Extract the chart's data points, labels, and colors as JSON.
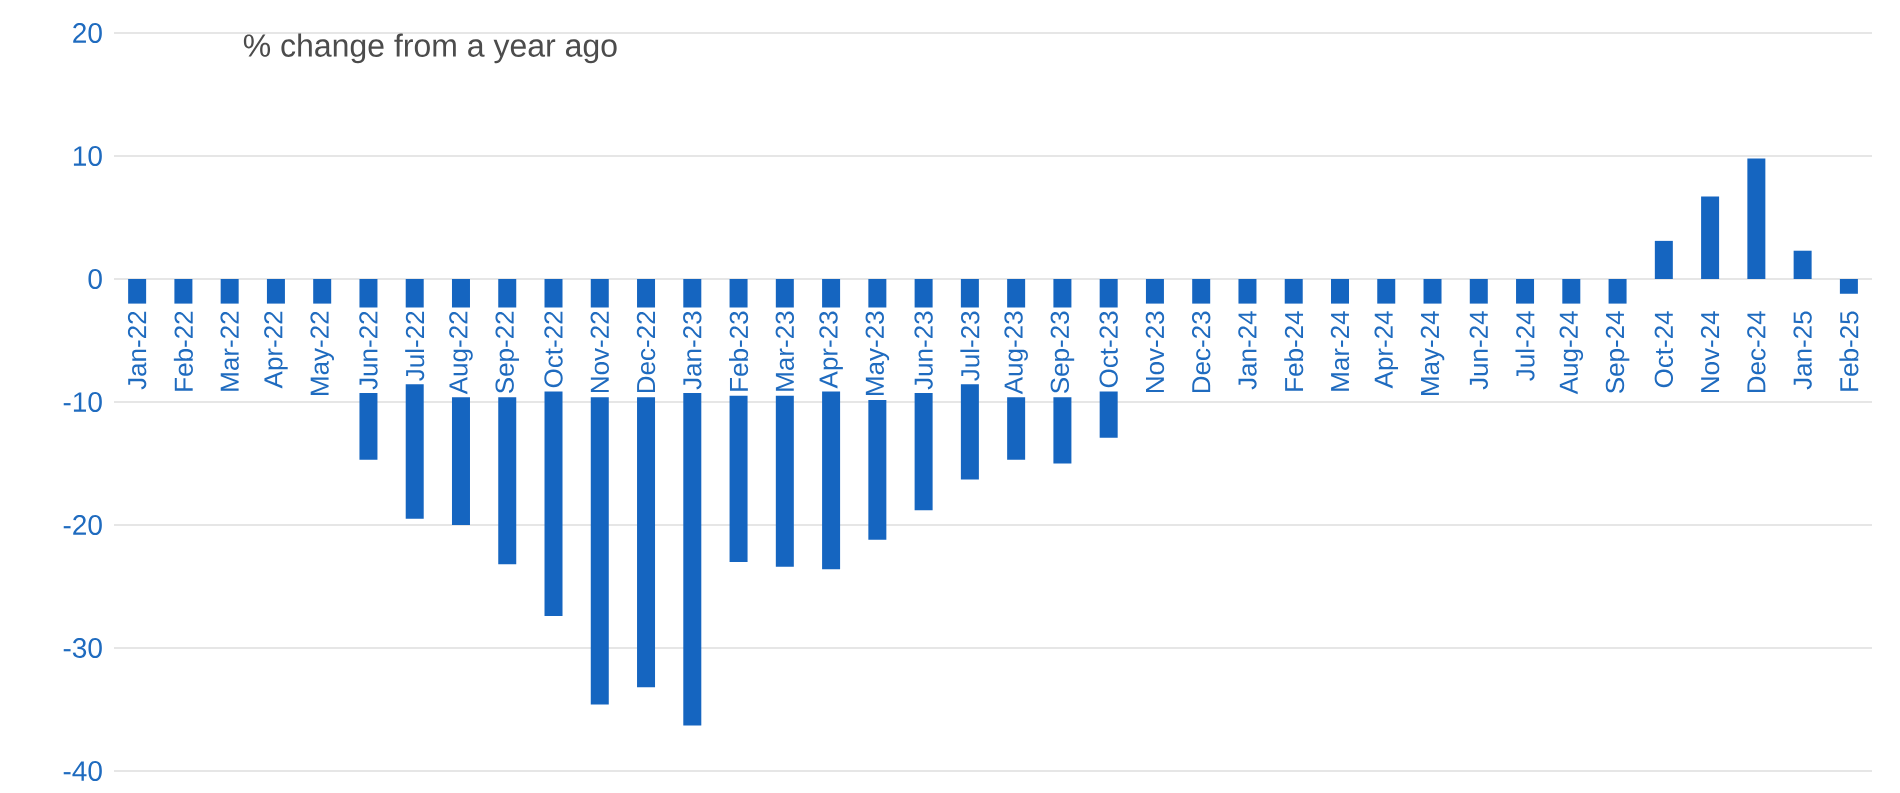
{
  "chart_data": {
    "type": "bar",
    "title": "% change from a year ago",
    "categories": [
      "Jan-22",
      "Feb-22",
      "Mar-22",
      "Apr-22",
      "May-22",
      "Jun-22",
      "Jul-22",
      "Aug-22",
      "Sep-22",
      "Oct-22",
      "Nov-22",
      "Dec-22",
      "Jan-23",
      "Feb-23",
      "Mar-23",
      "Apr-23",
      "May-23",
      "Jun-23",
      "Jul-23",
      "Aug-23",
      "Sep-23",
      "Oct-23",
      "Nov-23",
      "Dec-23",
      "Jan-24",
      "Feb-24",
      "Mar-24",
      "Apr-24",
      "May-24",
      "Jun-24",
      "Jul-24",
      "Aug-24",
      "Sep-24",
      "Oct-24",
      "Nov-24",
      "Dec-24",
      "Jan-25",
      "Feb-25"
    ],
    "values": [
      -2,
      -2,
      -2,
      -2,
      -2,
      -14.7,
      -19.5,
      -20.0,
      -23.2,
      -27.4,
      -34.6,
      -33.2,
      -36.3,
      -23.0,
      -23.4,
      -23.6,
      -21.2,
      -18.8,
      -16.3,
      -14.7,
      -15.0,
      -12.9,
      -2,
      -2,
      -2,
      -2,
      -2,
      -2,
      -2,
      -2,
      -2,
      -2,
      -2,
      3.1,
      6.7,
      9.8,
      2.3,
      -1.2
    ],
    "color": "#1565c0",
    "ylim": [
      -40,
      20
    ],
    "yticks": [
      -40,
      -30,
      -20,
      -10,
      0,
      10,
      20
    ],
    "grid": "y"
  }
}
